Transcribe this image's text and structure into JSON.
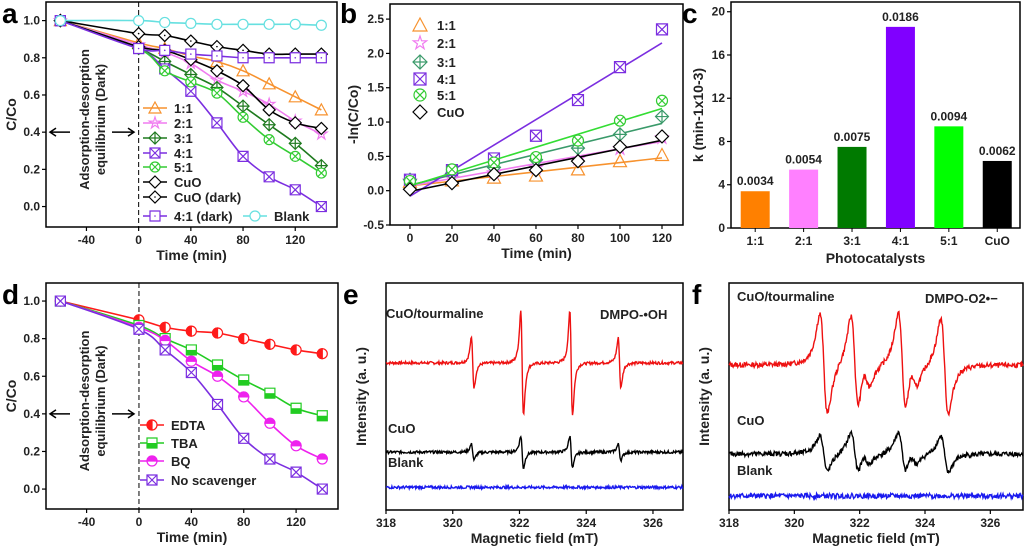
{
  "panels": {
    "a": "a",
    "b": "b",
    "c": "c",
    "d": "d",
    "e": "e",
    "f": "f"
  },
  "chart_data": [
    {
      "id": "a",
      "type": "line",
      "xlabel": "Time (min)",
      "ylabel": "C/Co",
      "xlim": [
        -71,
        152
      ],
      "ylim": [
        -0.11,
        1.1
      ],
      "xticks": [
        -40,
        0,
        40,
        80,
        120
      ],
      "yticks": [
        "0.0",
        "0.2",
        "0.4",
        "0.6",
        "0.8",
        "1.0"
      ],
      "annotation": [
        "Adsorption-desorption",
        "equilibrium (Dark)"
      ],
      "x": [
        -60,
        0,
        20,
        40,
        60,
        80,
        100,
        120,
        140
      ],
      "series": [
        {
          "name": "1:1",
          "color": "#f7922e",
          "marker": "triangle",
          "values": [
            1.0,
            0.88,
            0.85,
            0.81,
            0.78,
            0.73,
            0.66,
            0.59,
            0.52
          ]
        },
        {
          "name": "2:1",
          "color": "#f07cf0",
          "marker": "star",
          "values": [
            1.0,
            0.87,
            0.83,
            0.77,
            0.68,
            0.62,
            0.55,
            0.46,
            0.39
          ]
        },
        {
          "name": "3:1",
          "color": "#1e7a1e",
          "marker": "diamond-plus",
          "values": [
            1.0,
            0.85,
            0.78,
            0.71,
            0.64,
            0.54,
            0.44,
            0.34,
            0.22
          ]
        },
        {
          "name": "4:1",
          "color": "#7b2ee0",
          "marker": "square-x",
          "values": [
            1.0,
            0.85,
            0.74,
            0.62,
            0.45,
            0.27,
            0.16,
            0.09,
            0.0
          ]
        },
        {
          "name": "5:1",
          "color": "#33cc33",
          "marker": "circle-x",
          "values": [
            1.0,
            0.85,
            0.73,
            0.67,
            0.61,
            0.48,
            0.36,
            0.27,
            0.18
          ]
        },
        {
          "name": "CuO",
          "color": "#000000",
          "marker": "diamond",
          "values": [
            1.0,
            0.86,
            0.84,
            0.79,
            0.73,
            0.65,
            0.52,
            0.45,
            0.42
          ]
        },
        {
          "name": "CuO (dark)",
          "color": "#000000",
          "marker": "diamond-dot",
          "values": [
            1.0,
            0.93,
            0.92,
            0.89,
            0.86,
            0.84,
            0.82,
            0.82,
            0.82
          ]
        },
        {
          "name": "4:1 (dark)",
          "color": "#7b2ee0",
          "marker": "square-dot",
          "values": [
            1.0,
            0.85,
            0.84,
            0.82,
            0.81,
            0.8,
            0.8,
            0.8,
            0.8
          ]
        },
        {
          "name": "Blank",
          "color": "#66e0e0",
          "marker": "circle",
          "values": [
            1.0,
            1.0,
            0.99,
            0.985,
            0.98,
            0.98,
            0.98,
            0.98,
            0.975
          ]
        }
      ]
    },
    {
      "id": "b",
      "type": "scatter",
      "xlabel": "Time (min)",
      "ylabel": "-ln(C/Co)",
      "xlim": [
        -9.5,
        130
      ],
      "ylim": [
        -0.5,
        2.72
      ],
      "xticks": [
        0,
        20,
        40,
        60,
        80,
        100,
        120
      ],
      "yticks": [
        "-0.5",
        "0.0",
        "0.5",
        "1.0",
        "1.5",
        "2.0",
        "2.5"
      ],
      "x": [
        0,
        20,
        40,
        60,
        80,
        100,
        120
      ],
      "series": [
        {
          "name": "1:1",
          "color": "#f7922e",
          "fit_color": "#f7922e",
          "marker": "triangle",
          "values": [
            0.13,
            0.15,
            0.19,
            0.22,
            0.31,
            0.43,
            0.52
          ],
          "fit": {
            "slope": 0.0034,
            "intercept": 0.07
          }
        },
        {
          "name": "2:1",
          "color": "#f07cf0",
          "fit_color": "#f07cf0",
          "marker": "star",
          "values": [
            0.14,
            0.18,
            0.26,
            0.33,
            0.46,
            0.61,
            0.77
          ],
          "fit": {
            "slope": 0.0054,
            "intercept": 0.07
          }
        },
        {
          "name": "3:1",
          "color": "#3a9a6a",
          "fit_color": "#3a9a6a",
          "marker": "diamond-plus",
          "values": [
            0.16,
            0.25,
            0.34,
            0.45,
            0.62,
            0.82,
            1.08
          ],
          "fit": {
            "slope": 0.0075,
            "intercept": 0.08
          }
        },
        {
          "name": "4:1",
          "color": "#7b2ee0",
          "fit_color": "#7b2ee0",
          "marker": "square-x",
          "values": [
            0.16,
            0.3,
            0.47,
            0.8,
            1.32,
            1.8,
            2.35
          ],
          "fit": {
            "slope": 0.0186,
            "intercept": -0.08
          }
        },
        {
          "name": "5:1",
          "color": "#33cc33",
          "fit_color": "#33dd33",
          "marker": "circle-x",
          "values": [
            0.14,
            0.31,
            0.41,
            0.49,
            0.73,
            1.02,
            1.31
          ],
          "fit": {
            "slope": 0.0094,
            "intercept": 0.07
          }
        },
        {
          "name": "CuO",
          "color": "#000000",
          "fit_color": "#000000",
          "marker": "diamond",
          "values": [
            0.02,
            0.11,
            0.24,
            0.3,
            0.43,
            0.64,
            0.79
          ],
          "fit": {
            "slope": 0.0062,
            "intercept": -0.01
          }
        }
      ]
    },
    {
      "id": "c",
      "type": "bar",
      "xlabel": "Photocatalysts",
      "ylabel": "k (min-1x10-3)",
      "ylim": [
        0,
        20.9
      ],
      "yticks": [
        0,
        4,
        8,
        12,
        16,
        20
      ],
      "categories": [
        "1:1",
        "2:1",
        "3:1",
        "4:1",
        "5:1",
        "CuO"
      ],
      "values": [
        3.4,
        5.4,
        7.5,
        18.6,
        9.4,
        6.2
      ],
      "data_labels": [
        "0.0034",
        "0.0054",
        "0.0075",
        "0.0186",
        "0.0094",
        "0.0062"
      ],
      "colors": [
        "#ff8000",
        "#ff80ff",
        "#007a00",
        "#8000ff",
        "#00ff00",
        "#000000"
      ]
    },
    {
      "id": "d",
      "type": "line",
      "xlabel": "Time (min)",
      "ylabel": "C/Co",
      "xlim": [
        -71,
        152
      ],
      "ylim": [
        -0.106,
        1.096
      ],
      "xticks": [
        -40,
        0,
        40,
        80,
        120
      ],
      "yticks": [
        "0.0",
        "0.2",
        "0.4",
        "0.6",
        "0.8",
        "1.0"
      ],
      "annotation": [
        "Adsorption-desorption",
        "equilibrium (Dark)"
      ],
      "x": [
        -60,
        0,
        20,
        40,
        60,
        80,
        100,
        120,
        140
      ],
      "series": [
        {
          "name": "EDTA",
          "color": "#ff1a1a",
          "marker": "circle-half-left",
          "values": [
            1.0,
            0.9,
            0.86,
            0.84,
            0.83,
            0.8,
            0.77,
            0.74,
            0.72
          ]
        },
        {
          "name": "TBA",
          "color": "#22cc22",
          "marker": "square-half-bottom",
          "values": [
            1.0,
            0.87,
            0.8,
            0.74,
            0.66,
            0.58,
            0.51,
            0.43,
            0.39
          ]
        },
        {
          "name": "BQ",
          "color": "#ee22ee",
          "marker": "circle-half-top",
          "values": [
            1.0,
            0.86,
            0.79,
            0.68,
            0.6,
            0.49,
            0.35,
            0.23,
            0.16
          ]
        },
        {
          "name": "No scavenger",
          "color": "#7b2ee0",
          "marker": "square-x",
          "values": [
            1.0,
            0.85,
            0.74,
            0.62,
            0.45,
            0.27,
            0.16,
            0.09,
            0.0
          ]
        }
      ]
    },
    {
      "id": "e",
      "type": "line",
      "xlabel": "Magnetic field (mT)",
      "ylabel": "Intensity (a. u.)",
      "xlim": [
        318,
        326.9
      ],
      "ylim": [
        0,
        10
      ],
      "xticks": [
        318,
        320,
        322,
        324,
        326
      ],
      "title": "DMPO-•OH",
      "series": [
        {
          "name": "CuO/tourmaline",
          "color": "#ee1111",
          "offset": 6.48,
          "linewidth_mT": 0.07,
          "lines": [
            {
              "pos": 320.6,
              "amp": 1.1
            },
            {
              "pos": 322.08,
              "amp": 2.3
            },
            {
              "pos": 323.55,
              "amp": 2.3
            },
            {
              "pos": 325.0,
              "amp": 1.1
            }
          ]
        },
        {
          "name": "CuO",
          "color": "#000000",
          "offset": 2.55,
          "linewidth_mT": 0.07,
          "lines": [
            {
              "pos": 320.6,
              "amp": 0.35
            },
            {
              "pos": 322.08,
              "amp": 0.7
            },
            {
              "pos": 323.55,
              "amp": 0.7
            },
            {
              "pos": 325.0,
              "amp": 0.35
            }
          ]
        },
        {
          "name": "Blank",
          "color": "#1a1aee",
          "offset": 1.0,
          "linewidth_mT": 0.07,
          "lines": []
        }
      ]
    },
    {
      "id": "f",
      "type": "line",
      "xlabel": "Magnetic field (mT)",
      "ylabel": "Intensity (a. u.)",
      "xlim": [
        318,
        327.0
      ],
      "ylim": [
        0,
        10
      ],
      "xticks": [
        318,
        320,
        322,
        324,
        326
      ],
      "title": "DMPO-O2•−",
      "series": [
        {
          "name": "CuO/tourmaline",
          "color": "#ee1111",
          "offset": 6.39,
          "linewidth_mT": 0.2,
          "lines": [
            {
              "pos": 320.9,
              "amp": 2.2
            },
            {
              "pos": 321.85,
              "amp": 2.1
            },
            {
              "pos": 322.2,
              "amp": 0.6
            },
            {
              "pos": 323.3,
              "amp": 2.2
            },
            {
              "pos": 323.65,
              "amp": 0.6
            },
            {
              "pos": 324.6,
              "amp": 2.1
            }
          ]
        },
        {
          "name": "CuO",
          "color": "#000000",
          "offset": 2.47,
          "linewidth_mT": 0.2,
          "lines": [
            {
              "pos": 320.9,
              "amp": 0.8
            },
            {
              "pos": 321.85,
              "amp": 0.9
            },
            {
              "pos": 322.2,
              "amp": 0.3
            },
            {
              "pos": 323.3,
              "amp": 0.9
            },
            {
              "pos": 323.65,
              "amp": 0.3
            },
            {
              "pos": 324.6,
              "amp": 0.8
            }
          ]
        },
        {
          "name": "Blank",
          "color": "#1a1aee",
          "offset": 0.62,
          "linewidth_mT": 0.2,
          "lines": []
        }
      ]
    }
  ]
}
